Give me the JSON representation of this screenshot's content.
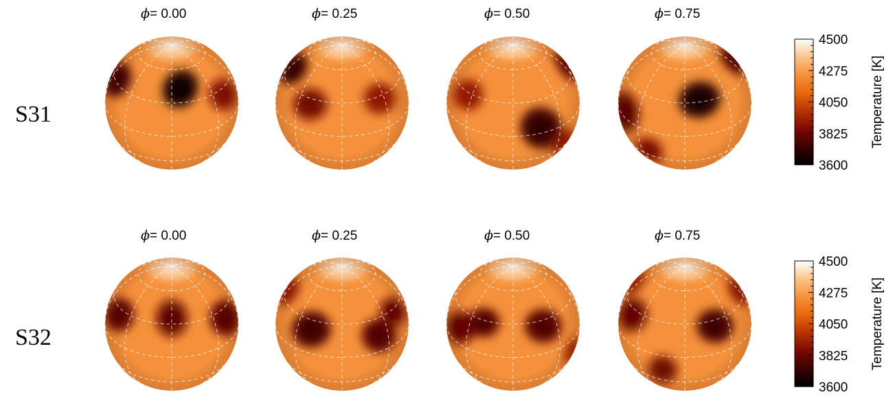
{
  "rows": [
    {
      "label": "S31",
      "panels": [
        {
          "phase_symbol": "ϕ",
          "phase_text": "= 0.00",
          "phase": 0.0
        },
        {
          "phase_symbol": "ϕ",
          "phase_text": "= 0.25",
          "phase": 0.25
        },
        {
          "phase_symbol": "ϕ",
          "phase_text": "= 0.50",
          "phase": 0.5
        },
        {
          "phase_symbol": "ϕ",
          "phase_text": "= 0.75",
          "phase": 0.75
        }
      ],
      "spots": [
        [
          {
            "lon": 10,
            "lat": 40,
            "r": 0.36,
            "strength": 1.0
          },
          {
            "lon": 62,
            "lat": 25,
            "r": 0.33,
            "strength": 0.65
          },
          {
            "lon": 140,
            "lat": 28,
            "r": 0.33,
            "strength": 0.6
          },
          {
            "lon": 210,
            "lat": 0,
            "r": 0.45,
            "strength": 0.85
          },
          {
            "lon": 290,
            "lat": 32,
            "r": 0.38,
            "strength": 0.95
          },
          {
            "lon": 240,
            "lat": -25,
            "r": 0.3,
            "strength": 0.75
          }
        ],
        [
          {
            "lon": 20,
            "lat": 40,
            "r": 0.32,
            "strength": 0.85
          },
          {
            "lon": 85,
            "lat": 20,
            "r": 0.35,
            "strength": 0.8
          },
          {
            "lon": 160,
            "lat": 20,
            "r": 0.35,
            "strength": 0.9
          },
          {
            "lon": 215,
            "lat": -25,
            "r": 0.33,
            "strength": 0.75
          },
          {
            "lon": 300,
            "lat": 20,
            "r": 0.35,
            "strength": 0.85
          }
        ]
      ]
    },
    {
      "label": "S32",
      "panels": [
        {
          "phase_symbol": "ϕ",
          "phase_text": "= 0.00",
          "phase": 0.0
        },
        {
          "phase_symbol": "ϕ",
          "phase_text": "= 0.25",
          "phase": 0.25
        },
        {
          "phase_symbol": "ϕ",
          "phase_text": "= 0.50",
          "phase": 0.5
        },
        {
          "phase_symbol": "ϕ",
          "phase_text": "= 0.75",
          "phase": 0.75
        }
      ]
    }
  ],
  "colorbar": {
    "title": "Temperature [K]",
    "tick_labels": [
      "4500",
      "4275",
      "4050",
      "3825",
      "3600"
    ],
    "min": 3600,
    "max": 4500,
    "stops": [
      "#000000",
      "#3a0000",
      "#7a0a00",
      "#b83300",
      "#e8670e",
      "#f5913b",
      "#fbc489",
      "#ffffff"
    ]
  },
  "colors": {
    "photosphere": "#f5913b",
    "grid": "#ffffff"
  }
}
